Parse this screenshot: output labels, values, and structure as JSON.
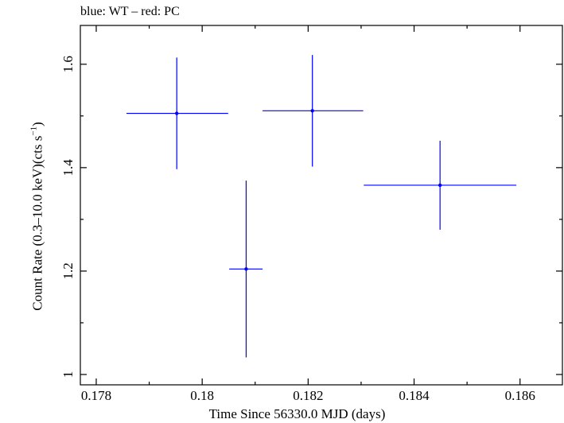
{
  "chart_data": {
    "type": "scatter",
    "title": "blue: WT – red: PC",
    "xlabel": "Time Since 56330.0 MJD (days)",
    "ylabel_parts": {
      "base": "Count Rate (0.3–10.0 keV)(cts s",
      "sup": "−1",
      "close": ")"
    },
    "xlim": [
      0.1777,
      0.1868
    ],
    "ylim": [
      0.98,
      1.675
    ],
    "xticks": [
      0.178,
      0.18,
      0.182,
      0.184,
      0.186
    ],
    "xtick_labels": [
      "0.178",
      "0.18",
      "0.182",
      "0.184",
      "0.186"
    ],
    "yticks": [
      1.0,
      1.2,
      1.4,
      1.6
    ],
    "ytick_labels": [
      "1",
      "1.2",
      "1.4",
      "1.6"
    ],
    "series": [
      {
        "name": "WT",
        "color": "#0000ff",
        "points": [
          {
            "x": 0.17952,
            "xerr_low": 0.17857,
            "xerr_high": 0.18049,
            "y": 1.505,
            "yerr_low": 1.397,
            "yerr_high": 1.613
          },
          {
            "x": 0.18083,
            "xerr_low": 0.18051,
            "xerr_high": 0.18114,
            "y": 1.204,
            "yerr_low": 1.033,
            "yerr_high": 1.375
          },
          {
            "x": 0.18208,
            "xerr_low": 0.18114,
            "xerr_high": 0.18304,
            "y": 1.51,
            "yerr_low": 1.402,
            "yerr_high": 1.618
          },
          {
            "x": 0.18449,
            "xerr_low": 0.18305,
            "xerr_high": 0.18593,
            "y": 1.366,
            "yerr_low": 1.28,
            "yerr_high": 1.452
          }
        ]
      }
    ]
  }
}
